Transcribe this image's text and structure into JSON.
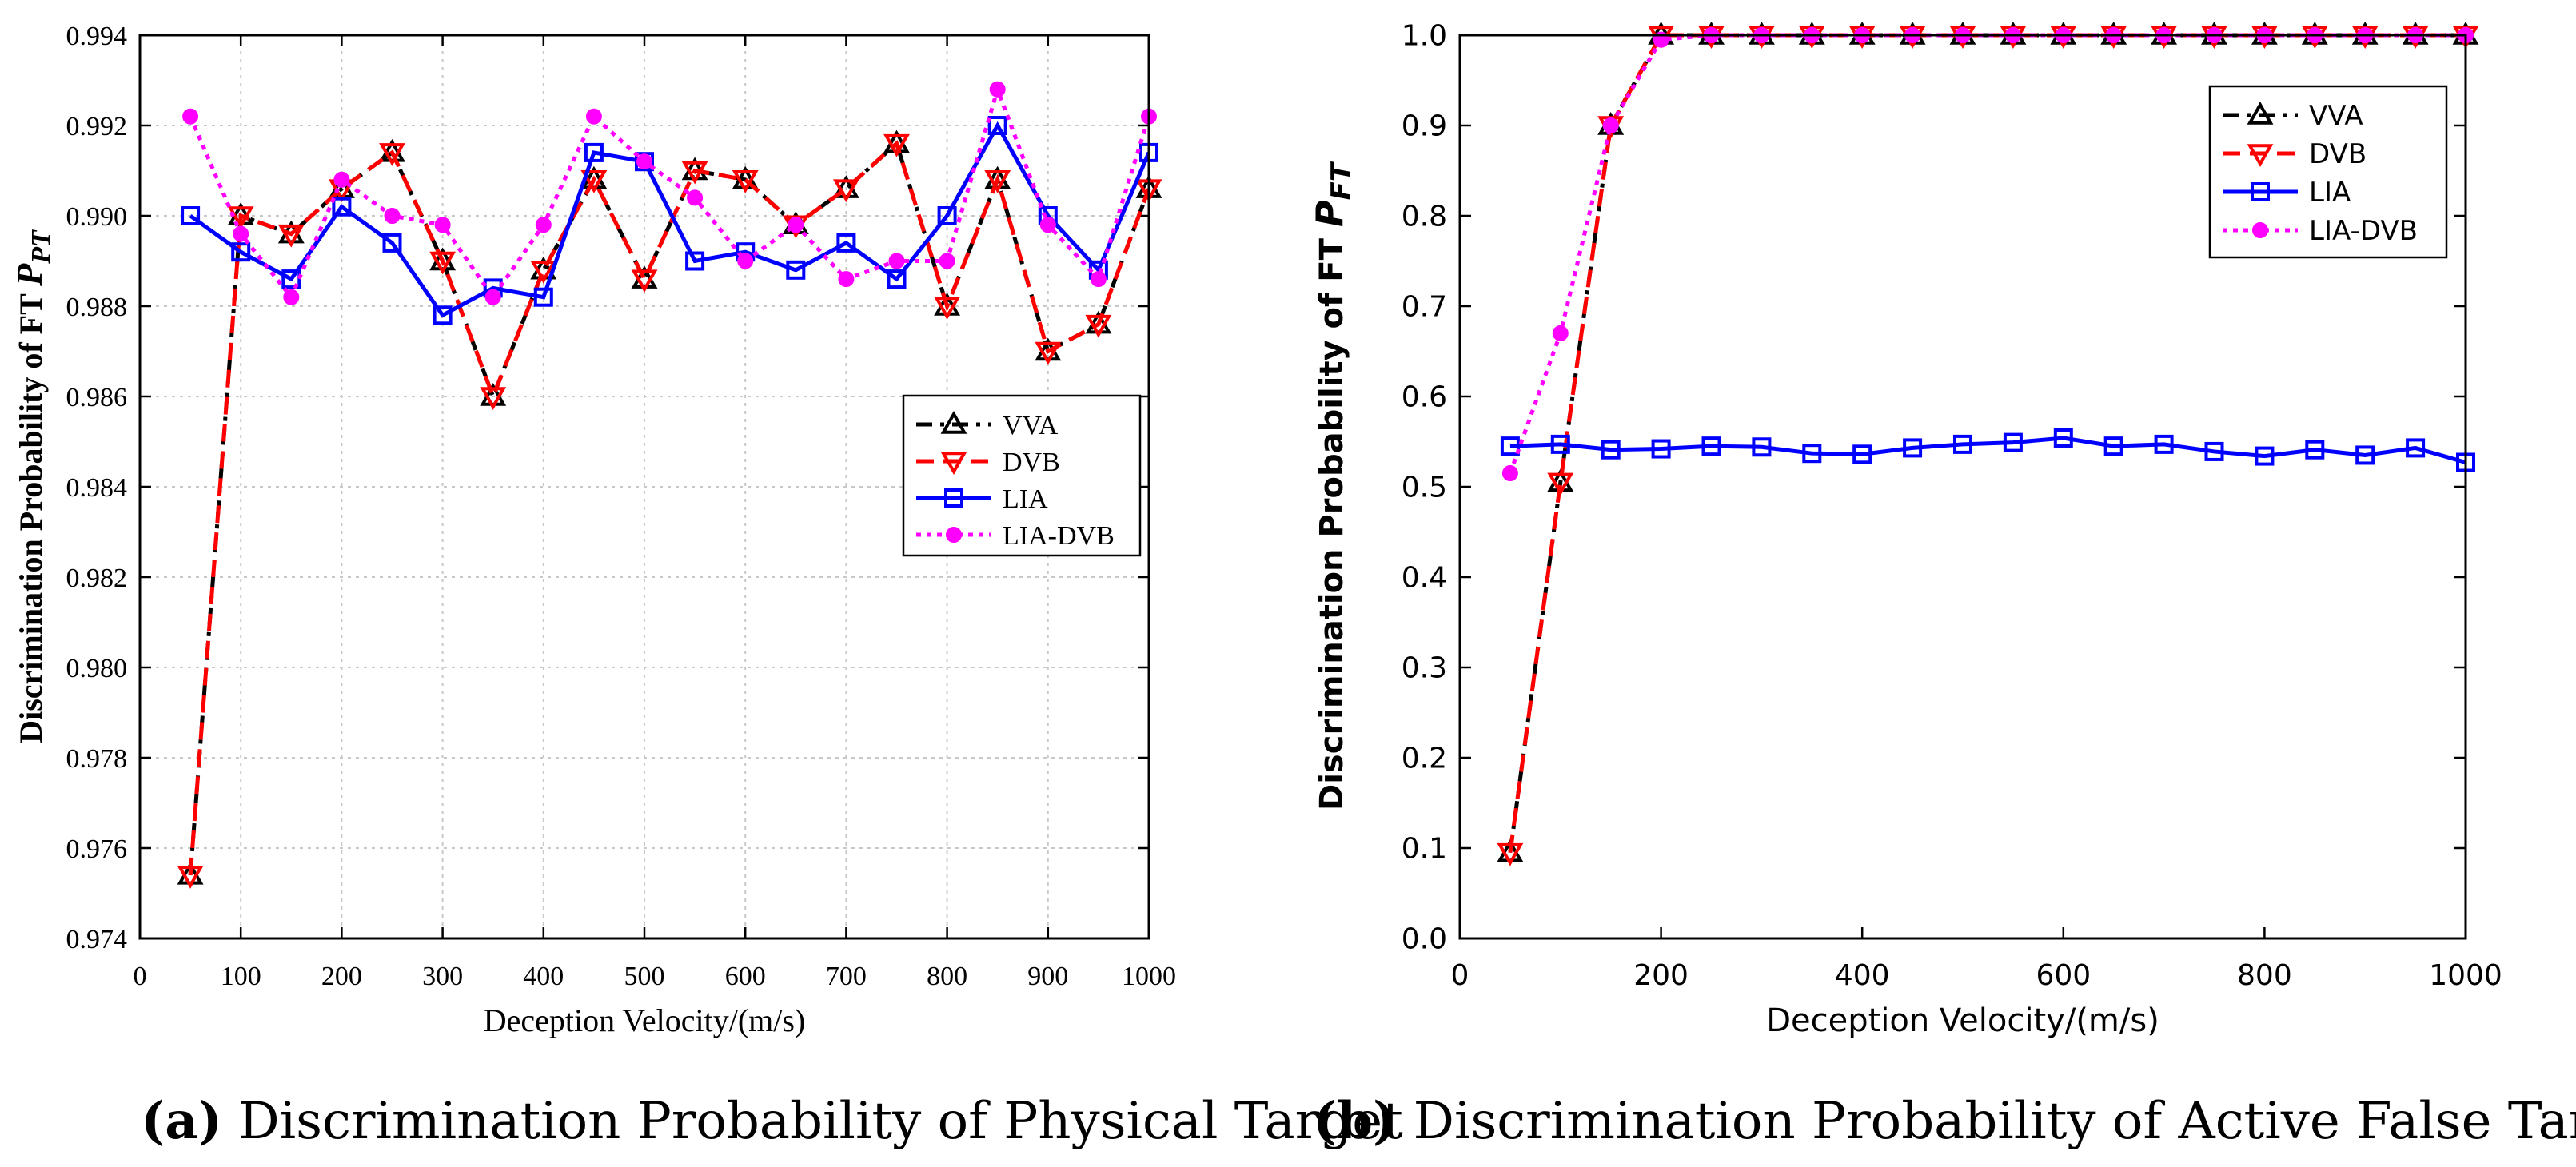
{
  "chart_data": [
    {
      "type": "line",
      "id": "a",
      "caption_label": "(a)",
      "caption_text": "Discrimination Probability of Physical Target",
      "xlabel": "Deception Velocity/(m/s)",
      "ylabel_main": "Discrimination Probability of FT ",
      "ylabel_symbol": "P",
      "ylabel_sub": "PT",
      "xlim": [
        0,
        1000
      ],
      "ylim": [
        0.974,
        0.994
      ],
      "xticks": [
        0,
        100,
        200,
        300,
        400,
        500,
        600,
        700,
        800,
        900,
        1000
      ],
      "xtick_labels": [
        "0",
        "100",
        "200",
        "300",
        "400",
        "500",
        "600",
        "700",
        "800",
        "900",
        "1000"
      ],
      "yticks": [
        0.974,
        0.976,
        0.978,
        0.98,
        0.982,
        0.984,
        0.986,
        0.988,
        0.99,
        0.992,
        0.994
      ],
      "ytick_labels": [
        "0.974",
        "0.976",
        "0.978",
        "0.980",
        "0.982",
        "0.984",
        "0.986",
        "0.988",
        "0.990",
        "0.992",
        "0.994"
      ],
      "grid": true,
      "legend_position": "center-right",
      "x": [
        50,
        100,
        150,
        200,
        250,
        300,
        350,
        400,
        450,
        500,
        550,
        600,
        650,
        700,
        750,
        800,
        850,
        900,
        950,
        1000
      ],
      "series": [
        {
          "name": "VVA",
          "color": "#000000",
          "dash": "dashdot",
          "marker": "triangle-up",
          "values": [
            0.9754,
            0.99,
            0.9896,
            0.9906,
            0.9914,
            0.989,
            0.986,
            0.9888,
            0.9908,
            0.9886,
            0.991,
            0.9908,
            0.9898,
            0.9906,
            0.9916,
            0.988,
            0.9908,
            0.987,
            0.9876,
            0.9906
          ]
        },
        {
          "name": "DVB",
          "color": "#ff0000",
          "dash": "dashed",
          "marker": "triangle-down",
          "values": [
            0.9754,
            0.99,
            0.9896,
            0.9906,
            0.9914,
            0.989,
            0.986,
            0.9888,
            0.9908,
            0.9886,
            0.991,
            0.9908,
            0.9898,
            0.9906,
            0.9916,
            0.988,
            0.9908,
            0.987,
            0.9876,
            0.9906
          ]
        },
        {
          "name": "LIA",
          "color": "#0000ff",
          "dash": "solid",
          "marker": "square",
          "values": [
            0.99,
            0.9892,
            0.9886,
            0.9902,
            0.9894,
            0.9878,
            0.9884,
            0.9882,
            0.9914,
            0.9912,
            0.989,
            0.9892,
            0.9888,
            0.9894,
            0.9886,
            0.99,
            0.992,
            0.99,
            0.9888,
            0.9914
          ]
        },
        {
          "name": "LIA-DVB",
          "color": "#ff00ff",
          "dash": "dotted",
          "marker": "circle",
          "values": [
            0.9922,
            0.9896,
            0.9882,
            0.9908,
            0.99,
            0.9898,
            0.9882,
            0.9898,
            0.9922,
            0.9912,
            0.9904,
            0.989,
            0.9898,
            0.9886,
            0.989,
            0.989,
            0.9928,
            0.9898,
            0.9886,
            0.9922
          ]
        }
      ]
    },
    {
      "type": "line",
      "id": "b",
      "caption_label": "(b)",
      "caption_text": "Discrimination Probability of Active False Target",
      "xlabel": "Deception Velocity/(m/s)",
      "ylabel_main": "Discrimination Probability of FT ",
      "ylabel_symbol": "P",
      "ylabel_sub": "FT",
      "xlim": [
        0,
        1000
      ],
      "ylim": [
        0,
        1
      ],
      "xticks": [
        0,
        200,
        400,
        600,
        800,
        1000
      ],
      "xtick_labels": [
        "0",
        "200",
        "400",
        "600",
        "800",
        "1000"
      ],
      "yticks": [
        0,
        0.1,
        0.2,
        0.3,
        0.4,
        0.5,
        0.6,
        0.7,
        0.8,
        0.9,
        1.0
      ],
      "ytick_labels": [
        "0.0",
        "0.1",
        "0.2",
        "0.3",
        "0.4",
        "0.5",
        "0.6",
        "0.7",
        "0.8",
        "0.9",
        "1.0"
      ],
      "grid": false,
      "legend_position": "top-right",
      "x": [
        50,
        100,
        150,
        200,
        250,
        300,
        350,
        400,
        450,
        500,
        550,
        600,
        650,
        700,
        750,
        800,
        850,
        900,
        950,
        1000
      ],
      "series": [
        {
          "name": "VVA",
          "color": "#000000",
          "dash": "dashdot",
          "marker": "triangle-up",
          "values": [
            0.095,
            0.505,
            0.9,
            1.0,
            1.0,
            1.0,
            1.0,
            1.0,
            1.0,
            1.0,
            1.0,
            1.0,
            1.0,
            1.0,
            1.0,
            1.0,
            1.0,
            1.0,
            1.0,
            1.0
          ]
        },
        {
          "name": "DVB",
          "color": "#ff0000",
          "dash": "dashed",
          "marker": "triangle-down",
          "values": [
            0.095,
            0.505,
            0.9,
            1.0,
            1.0,
            1.0,
            1.0,
            1.0,
            1.0,
            1.0,
            1.0,
            1.0,
            1.0,
            1.0,
            1.0,
            1.0,
            1.0,
            1.0,
            1.0,
            1.0
          ]
        },
        {
          "name": "LIA",
          "color": "#0000ff",
          "dash": "solid",
          "marker": "square",
          "values": [
            0.545,
            0.547,
            0.541,
            0.542,
            0.545,
            0.544,
            0.537,
            0.536,
            0.543,
            0.547,
            0.549,
            0.554,
            0.545,
            0.547,
            0.539,
            0.534,
            0.541,
            0.535,
            0.543,
            0.527
          ]
        },
        {
          "name": "LIA-DVB",
          "color": "#ff00ff",
          "dash": "dotted",
          "marker": "circle",
          "values": [
            0.515,
            0.67,
            0.9,
            0.995,
            1.0,
            1.0,
            1.0,
            1.0,
            1.0,
            1.0,
            1.0,
            1.0,
            1.0,
            1.0,
            1.0,
            1.0,
            1.0,
            1.0,
            1.0,
            1.0
          ]
        }
      ]
    }
  ]
}
